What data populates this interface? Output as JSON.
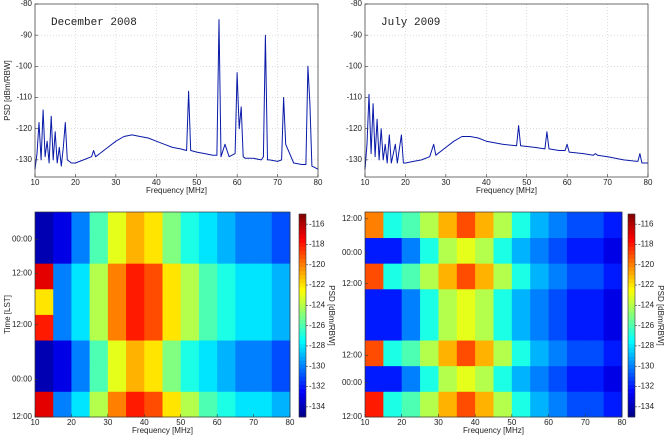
{
  "chart_data": [
    {
      "type": "line",
      "title": "December 2008",
      "xlabel": "Frequency [MHz]",
      "ylabel": "PSD [dBm/RBW]",
      "color": "#0a1aa8",
      "grid": true,
      "xlim": [
        10,
        80
      ],
      "xticks": [
        10,
        20,
        30,
        40,
        50,
        60,
        70,
        80
      ],
      "ylim": [
        -135.5,
        -80
      ],
      "yticks": [
        -80,
        -90,
        -100,
        -110,
        -120,
        -130
      ],
      "x": [
        10,
        10.5,
        11,
        11.5,
        12,
        12.5,
        13,
        13.5,
        14,
        14.5,
        15,
        15.5,
        16,
        16.5,
        17,
        17.5,
        18,
        19,
        20,
        22,
        24,
        24.5,
        25,
        26,
        28,
        30,
        32,
        34,
        36,
        38,
        40,
        42,
        44,
        46,
        47.5,
        48,
        48.5,
        50,
        52,
        54,
        55,
        55.5,
        56,
        57,
        58,
        59.5,
        60,
        60.5,
        61,
        61.5,
        62,
        64,
        66,
        66.5,
        67,
        67.5,
        68,
        70,
        71,
        71.5,
        72,
        74,
        76,
        77,
        77.5,
        78,
        78.5,
        80
      ],
      "values": [
        -133,
        -128,
        -118,
        -130,
        -114,
        -129,
        -124,
        -131,
        -116,
        -130,
        -121,
        -131,
        -126,
        -132,
        -126,
        -118,
        -130,
        -131,
        -131,
        -130,
        -129,
        -127,
        -129,
        -128,
        -126,
        -124,
        -122.5,
        -122,
        -122.5,
        -123,
        -124,
        -125,
        -126,
        -126.5,
        -127,
        -108,
        -127,
        -127.5,
        -128,
        -128.5,
        -128.5,
        -85,
        -129,
        -125,
        -129,
        -128,
        -102,
        -120,
        -113,
        -129,
        -129.5,
        -129.5,
        -130,
        -129,
        -90,
        -130,
        -130,
        -130.5,
        -130,
        -110,
        -125,
        -131,
        -131.5,
        -131.5,
        -100,
        -112,
        -132,
        -133
      ]
    },
    {
      "type": "line",
      "title": "July 2009",
      "xlabel": "Frequency [MHz]",
      "color": "#0a1aa8",
      "grid": true,
      "xlim": [
        10,
        80
      ],
      "xticks": [
        10,
        20,
        30,
        40,
        50,
        60,
        70,
        80
      ],
      "ylim": [
        -135.5,
        -80
      ],
      "yticks": [
        -80,
        -90,
        -100,
        -110,
        -120,
        -130
      ],
      "x": [
        10,
        10.5,
        11,
        11.5,
        12,
        12.5,
        13,
        13.5,
        14,
        14.5,
        15,
        15.5,
        16,
        16.5,
        17.5,
        18,
        19,
        19.5,
        20,
        22,
        24,
        26,
        27,
        27.5,
        30,
        32,
        34,
        36,
        38,
        40,
        44,
        47.5,
        48,
        48.5,
        52,
        54.5,
        55,
        55.5,
        58,
        59.5,
        60,
        60.5,
        64,
        66.5,
        67,
        67.5,
        70,
        74,
        77.5,
        78,
        78.5,
        80
      ],
      "values": [
        -133,
        -125,
        -109,
        -128,
        -112,
        -129,
        -117,
        -130,
        -120,
        -130,
        -125,
        -131,
        -122,
        -131,
        -125,
        -131,
        -122,
        -131,
        -131,
        -130.5,
        -130,
        -129,
        -125,
        -128.5,
        -126,
        -124,
        -122.5,
        -122.5,
        -123,
        -124,
        -125,
        -125.5,
        -119,
        -125.5,
        -126,
        -126.5,
        -121,
        -126.5,
        -127,
        -127,
        -125,
        -127.5,
        -128,
        -128.5,
        -128,
        -128.5,
        -129,
        -130,
        -130.5,
        -128,
        -131,
        -131
      ]
    },
    {
      "type": "heatmap",
      "xlabel": "Frequency [MHz]",
      "ylabel": "Time [LST]",
      "clabel": "PSD [dBm/RBW]",
      "xlim": [
        10,
        80
      ],
      "xticks": [
        10,
        20,
        30,
        40,
        50,
        60,
        70,
        80
      ],
      "ylim": [
        0,
        60
      ],
      "yticks": [
        {
          "value": 0,
          "label": "12:00"
        },
        {
          "value": 11,
          "label": "00:00"
        },
        {
          "value": 27,
          "label": "12:00"
        },
        {
          "value": 42,
          "label": "12:00"
        },
        {
          "value": 52,
          "label": "00:00"
        }
      ],
      "clim": [
        -135,
        -115
      ],
      "cticks": [
        -116,
        -118,
        -120,
        -122,
        -124,
        -126,
        -128,
        -130,
        -132,
        -134
      ],
      "xbins": [
        10,
        15,
        20,
        25,
        30,
        35,
        40,
        45,
        50,
        55,
        60,
        65,
        70,
        75,
        80
      ],
      "ybins": [
        0,
        7.5,
        15,
        22.5,
        30,
        37.5,
        45,
        52.5,
        60
      ],
      "z": [
        [
          -117,
          -130,
          -128,
          -124,
          -120,
          -118,
          -119,
          -122,
          -124,
          -126,
          -127,
          -128,
          -128,
          -129
        ],
        [
          -134,
          -133,
          -130,
          -126,
          -123,
          -121,
          -122,
          -125,
          -127,
          -128,
          -129,
          -130,
          -130,
          -131
        ],
        [
          -134,
          -133,
          -130,
          -126,
          -123,
          -121,
          -122,
          -125,
          -127,
          -128,
          -129,
          -130,
          -130,
          -131
        ],
        [
          -118,
          -130,
          -128,
          -124,
          -120,
          -118,
          -119,
          -122,
          -124,
          -126,
          -127,
          -128,
          -128,
          -129
        ],
        [
          -122,
          -130,
          -128,
          -124,
          -120,
          -118,
          -119,
          -122,
          -124,
          -126,
          -127,
          -128,
          -128,
          -129
        ],
        [
          -117,
          -130,
          -128,
          -124,
          -120,
          -118,
          -119,
          -122,
          -124,
          -126,
          -127,
          -128,
          -128,
          -129
        ],
        [
          -134,
          -133,
          -130,
          -126,
          -123,
          -121,
          -122,
          -125,
          -127,
          -128,
          -129,
          -130,
          -130,
          -131
        ],
        [
          -134,
          -133,
          -130,
          -126,
          -123,
          -121,
          -122,
          -125,
          -127,
          -128,
          -129,
          -130,
          -130,
          -131
        ]
      ]
    },
    {
      "type": "heatmap",
      "xlabel": "Frequency [MHz]",
      "clabel": "PSD [dBm/RBW]",
      "xlim": [
        10,
        80
      ],
      "xticks": [
        10,
        20,
        30,
        40,
        50,
        60,
        70,
        80
      ],
      "ylim": [
        0,
        60
      ],
      "yticks": [
        {
          "value": 0,
          "label": "12:00"
        },
        {
          "value": 10,
          "label": "00:00"
        },
        {
          "value": 18,
          "label": "12:00"
        },
        {
          "value": 39,
          "label": "12:00"
        },
        {
          "value": 48,
          "label": "00:00"
        },
        {
          "value": 58,
          "label": "12:00"
        }
      ],
      "clim": [
        -135,
        -115
      ],
      "cticks": [
        -116,
        -118,
        -120,
        -122,
        -124,
        -126,
        -128,
        -130,
        -132,
        -134
      ],
      "xbins": [
        10,
        15,
        20,
        25,
        30,
        35,
        40,
        45,
        50,
        55,
        60,
        65,
        70,
        75,
        80
      ],
      "ybins": [
        0,
        7.5,
        15,
        22.5,
        30,
        37.5,
        45,
        52.5,
        60
      ],
      "z": [
        [
          -118,
          -127,
          -126,
          -124,
          -121,
          -119,
          -121,
          -124,
          -127,
          -129,
          -130,
          -131,
          -131,
          -132
        ],
        [
          -132,
          -132,
          -130,
          -127,
          -124,
          -123,
          -124,
          -127,
          -129,
          -130,
          -131,
          -132,
          -132,
          -133
        ],
        [
          -119,
          -127,
          -126,
          -124,
          -121,
          -119,
          -121,
          -124,
          -127,
          -129,
          -130,
          -131,
          -131,
          -132
        ],
        [
          -132,
          -132,
          -130,
          -127,
          -124,
          -123,
          -124,
          -127,
          -129,
          -130,
          -131,
          -132,
          -132,
          -133
        ],
        [
          -132,
          -132,
          -130,
          -127,
          -124,
          -123,
          -124,
          -127,
          -129,
          -130,
          -131,
          -132,
          -132,
          -133
        ],
        [
          -119,
          -127,
          -126,
          -124,
          -121,
          -119,
          -121,
          -124,
          -127,
          -129,
          -130,
          -131,
          -131,
          -132
        ],
        [
          -132,
          -132,
          -130,
          -127,
          -124,
          -123,
          -124,
          -127,
          -129,
          -130,
          -131,
          -132,
          -132,
          -133
        ],
        [
          -120,
          -127,
          -126,
          -124,
          -121,
          -119,
          -121,
          -124,
          -127,
          -129,
          -130,
          -131,
          -131,
          -132
        ]
      ]
    }
  ]
}
